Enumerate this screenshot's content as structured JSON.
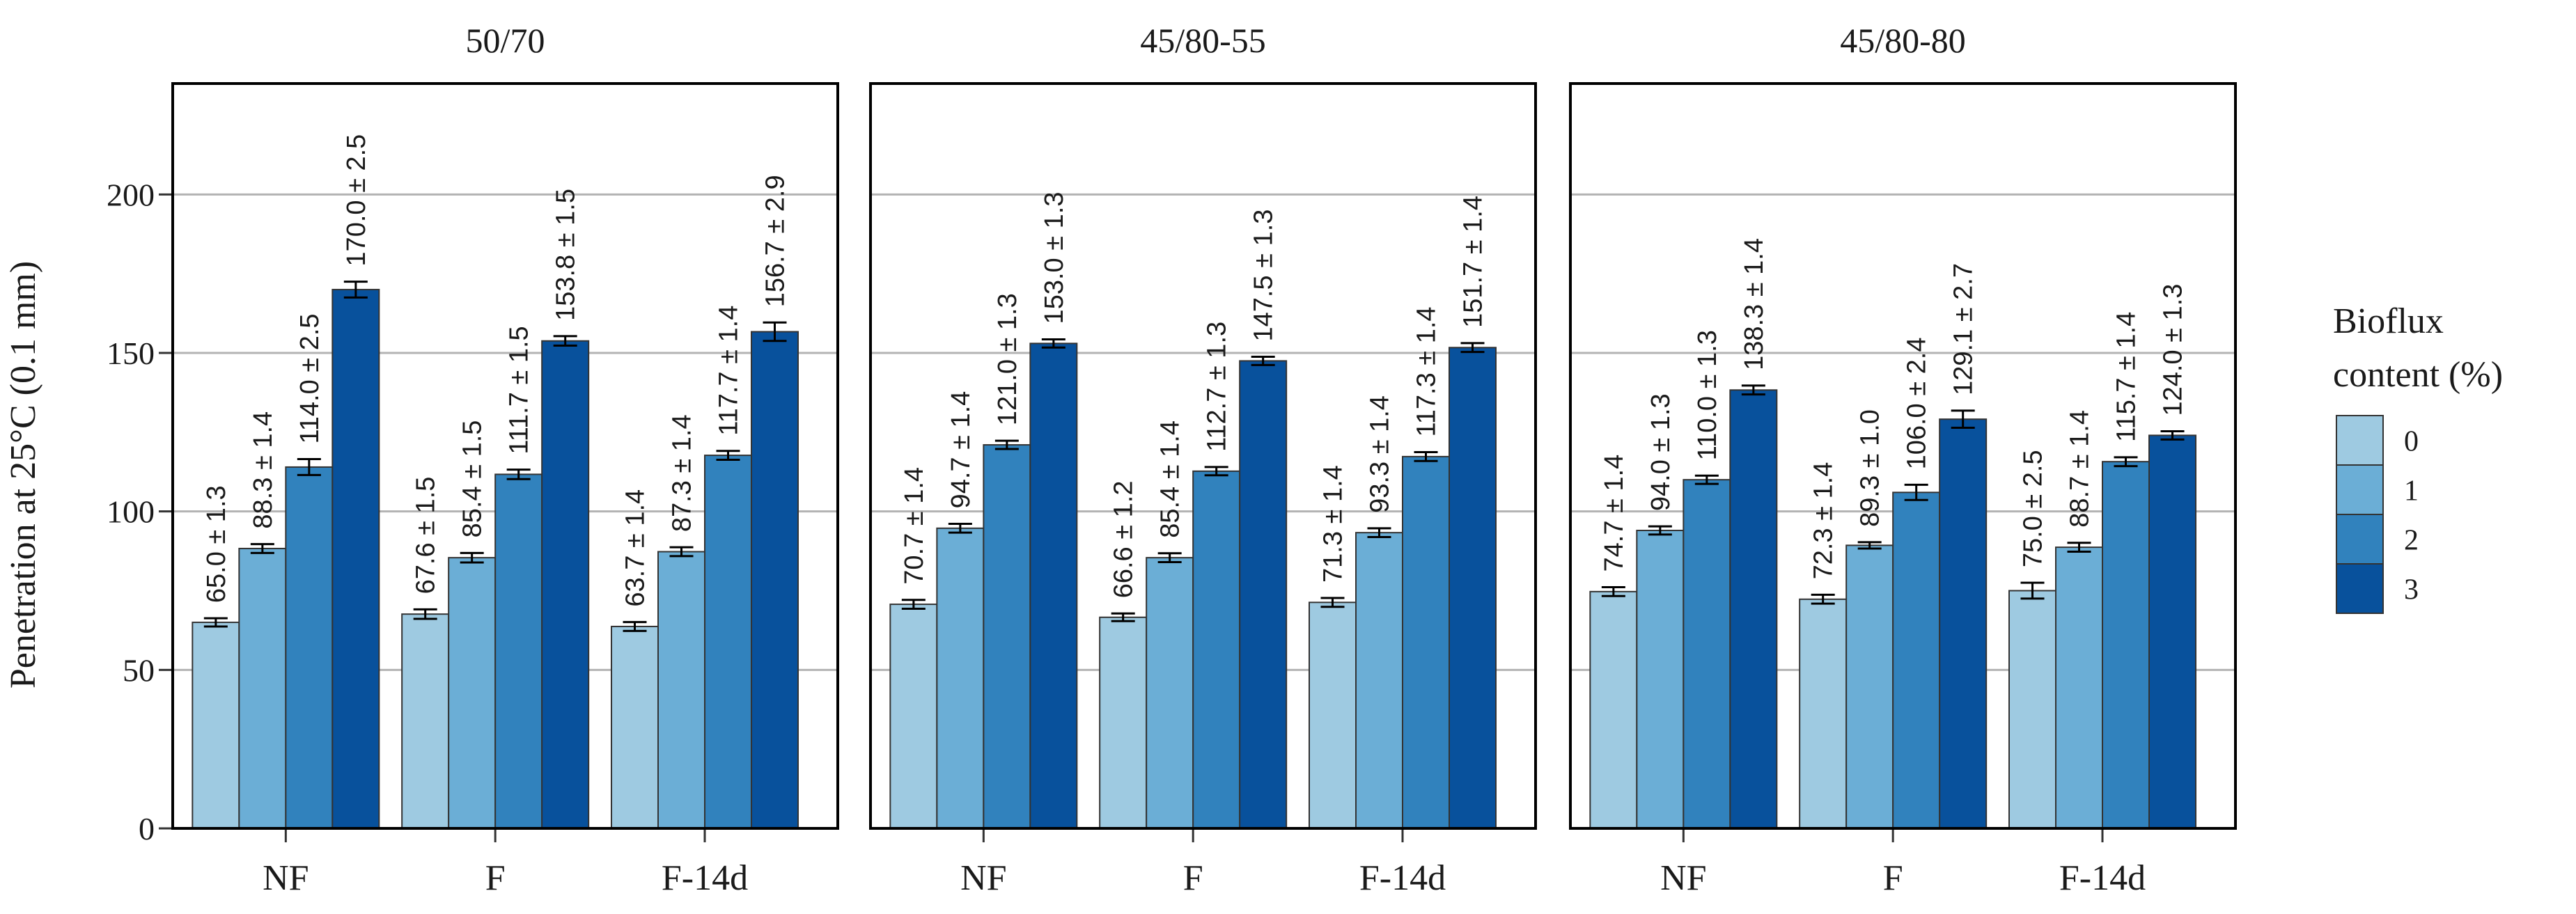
{
  "chart_data": {
    "type": "bar",
    "ylabel": "Penetration at 25°C (0.1 mm)",
    "ylim": [
      0,
      235
    ],
    "yticks": [
      0,
      50,
      100,
      150,
      200
    ],
    "categories": [
      "NF",
      "F",
      "F-14d"
    ],
    "legend": {
      "title_line1": "Bioflux",
      "title_line2": "content (%)",
      "entries": [
        "0",
        "1",
        "2",
        "3"
      ],
      "colors": [
        "#9ecae1",
        "#6baed6",
        "#3182bd",
        "#08519c"
      ],
      "placement": "right"
    },
    "panels": [
      {
        "title": "50/70",
        "series": [
          {
            "name": "0",
            "values": [
              65.0,
              67.6,
              63.7
            ],
            "errors": [
              1.3,
              1.5,
              1.4
            ]
          },
          {
            "name": "1",
            "values": [
              88.3,
              85.4,
              87.3
            ],
            "errors": [
              1.4,
              1.5,
              1.4
            ]
          },
          {
            "name": "2",
            "values": [
              114.0,
              111.7,
              117.7
            ],
            "errors": [
              2.5,
              1.5,
              1.4
            ]
          },
          {
            "name": "3",
            "values": [
              170.0,
              153.8,
              156.7
            ],
            "errors": [
              2.5,
              1.5,
              2.9
            ]
          }
        ],
        "labels": [
          [
            "65.0 ± 1.3",
            "67.6 ± 1.5",
            "63.7 ± 1.4"
          ],
          [
            "88.3 ± 1.4",
            "85.4 ± 1.5",
            "87.3 ± 1.4"
          ],
          [
            "114.0 ± 2.5",
            "111.7 ± 1.5",
            "117.7 ± 1.4"
          ],
          [
            "170.0 ± 2.5",
            "153.8 ± 1.5",
            "156.7 ± 2.9"
          ]
        ]
      },
      {
        "title": "45/80-55",
        "series": [
          {
            "name": "0",
            "values": [
              70.7,
              66.6,
              71.3
            ],
            "errors": [
              1.4,
              1.2,
              1.4
            ]
          },
          {
            "name": "1",
            "values": [
              94.7,
              85.4,
              93.3
            ],
            "errors": [
              1.4,
              1.4,
              1.4
            ]
          },
          {
            "name": "2",
            "values": [
              121.0,
              112.7,
              117.3
            ],
            "errors": [
              1.3,
              1.3,
              1.4
            ]
          },
          {
            "name": "3",
            "values": [
              153.0,
              147.5,
              151.7
            ],
            "errors": [
              1.3,
              1.3,
              1.4
            ]
          }
        ],
        "labels": [
          [
            "70.7 ± 1.4",
            "66.6 ± 1.2",
            "71.3 ± 1.4"
          ],
          [
            "94.7 ± 1.4",
            "85.4 ± 1.4",
            "93.3 ± 1.4"
          ],
          [
            "121.0 ± 1.3",
            "112.7 ± 1.3",
            "117.3 ± 1.4"
          ],
          [
            "153.0 ± 1.3",
            "147.5 ± 1.3",
            "151.7 ± 1.4"
          ]
        ]
      },
      {
        "title": "45/80-80",
        "series": [
          {
            "name": "0",
            "values": [
              74.7,
              72.3,
              75.0
            ],
            "errors": [
              1.4,
              1.4,
              2.5
            ]
          },
          {
            "name": "1",
            "values": [
              94.0,
              89.3,
              88.7
            ],
            "errors": [
              1.3,
              1.0,
              1.4
            ]
          },
          {
            "name": "2",
            "values": [
              110.0,
              106.0,
              115.7
            ],
            "errors": [
              1.3,
              2.4,
              1.4
            ]
          },
          {
            "name": "3",
            "values": [
              138.3,
              129.1,
              124.0
            ],
            "errors": [
              1.4,
              2.7,
              1.3
            ]
          }
        ],
        "labels": [
          [
            "74.7 ± 1.4",
            "72.3 ± 1.4",
            "75.0 ± 2.5"
          ],
          [
            "94.0 ± 1.3",
            "89.3 ± 1.0",
            "88.7 ± 1.4"
          ],
          [
            "110.0 ± 1.3",
            "106.0 ± 2.4",
            "115.7 ± 1.4"
          ],
          [
            "138.3 ± 1.4",
            "129.1 ± 2.7",
            "124.0 ± 1.3"
          ]
        ]
      }
    ]
  }
}
